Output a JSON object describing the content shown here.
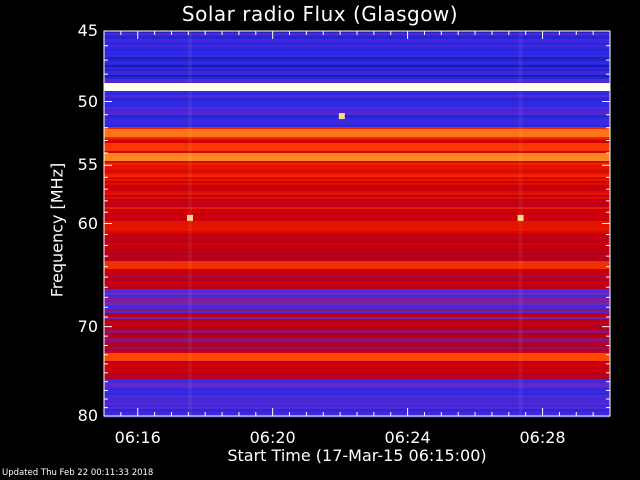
{
  "chart_data": {
    "type": "heatmap",
    "title": "Solar radio Flux (Glasgow)",
    "xlabel": "Start Time (17-Mar-15 06:15:00)",
    "ylabel": "Frequency [MHz]",
    "x_tick_labels": [
      "06:16",
      "06:20",
      "06:24",
      "06:28"
    ],
    "x_ticks_minutes_after_start": [
      1,
      5,
      9,
      13
    ],
    "xlim_minutes_after_start": [
      0,
      15
    ],
    "y_ticks": [
      45,
      50,
      55,
      60,
      70,
      80
    ],
    "ylim": [
      45,
      80
    ],
    "y_scale": "log",
    "colormap": "blue-red-yellow",
    "colors": {
      "background": "#000000",
      "low": "#1a1acc",
      "mid": "#cc0000",
      "high": "#ffff60"
    },
    "bright_bands_mhz": [
      {
        "f": 48.8,
        "level": 1.0
      },
      {
        "f": 52.3,
        "level": 0.8
      },
      {
        "f": 53.5,
        "level": 0.72
      },
      {
        "f": 54.3,
        "level": 0.82
      },
      {
        "f": 63.8,
        "level": 0.7
      },
      {
        "f": 73.2,
        "level": 0.75
      }
    ],
    "bright_spots": [
      {
        "minutes": 2.55,
        "mhz": 59.5
      },
      {
        "minutes": 12.35,
        "mhz": 59.5
      },
      {
        "minutes": 7.05,
        "mhz": 51.1
      }
    ]
  },
  "footer": "Updated Thu Feb 22 00:11:33 2018"
}
